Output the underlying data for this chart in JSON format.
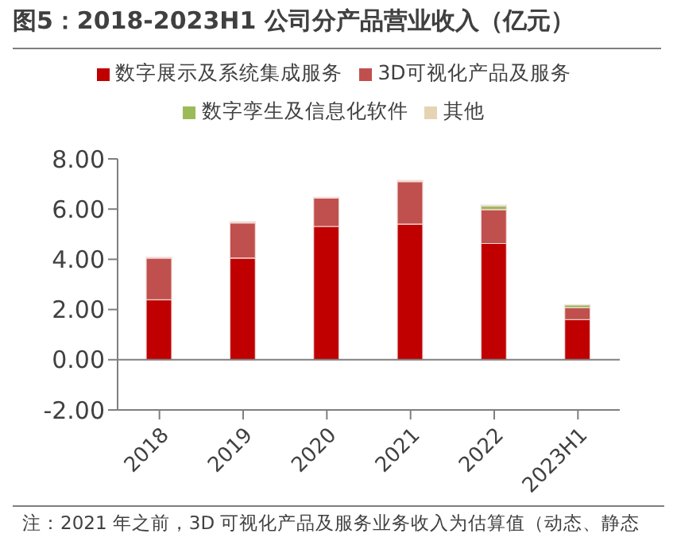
{
  "chart_data": {
    "type": "bar",
    "title": "图5：2018-2023H1 公司分产品营业收入（亿元）",
    "stacked": true,
    "legend": "top",
    "categories": [
      "2018",
      "2019",
      "2020",
      "2021",
      "2022",
      "2023H1"
    ],
    "series": [
      {
        "name": "数字展示及系统集成服务",
        "color": "#c00000",
        "values": [
          2.39,
          4.05,
          5.31,
          5.4,
          4.63,
          1.6
        ]
      },
      {
        "name": "3D可视化产品及服务",
        "color": "#c0504d",
        "values": [
          1.66,
          1.4,
          1.13,
          1.69,
          1.35,
          0.47
        ]
      },
      {
        "name": "数字孪生及信息化软件",
        "color": "#9bbb59",
        "values": [
          null,
          null,
          null,
          null,
          0.15,
          0.11
        ]
      },
      {
        "name": "其他",
        "color": "#e6d3b3",
        "values": [
          0.03,
          0.05,
          0.03,
          0.05,
          0.03,
          null
        ]
      }
    ],
    "ylim": [
      -2,
      8
    ],
    "yticks": [
      {
        "value": -2,
        "label": "-2.00"
      },
      {
        "value": 0,
        "label": "0.00"
      },
      {
        "value": 2,
        "label": "2.00"
      },
      {
        "value": 4,
        "label": "4.00"
      },
      {
        "value": 6,
        "label": "6.00"
      },
      {
        "value": 8,
        "label": "8.00"
      }
    ],
    "annotations": [
      "注：2021 年之前，3D 可视化产品及服务业务收入为估算值（动态、静态"
    ]
  }
}
